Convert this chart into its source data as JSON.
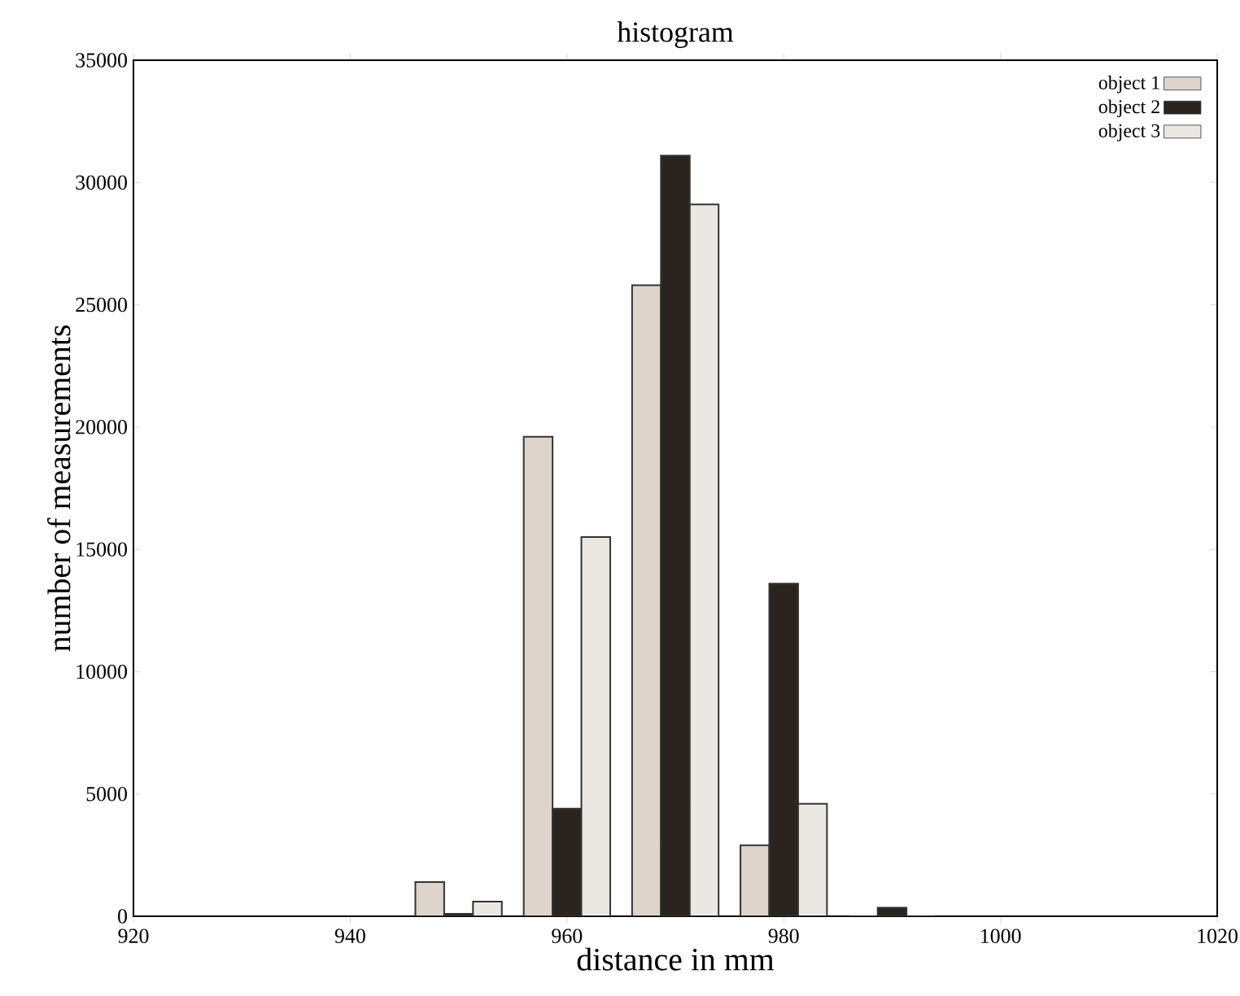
{
  "chart_data": {
    "type": "bar",
    "title": "histogram",
    "xlabel": "distance in mm",
    "ylabel": "number of measurements",
    "x": [
      950,
      960,
      970,
      980,
      990
    ],
    "series": [
      {
        "name": "object 1",
        "color": "#ddd5cc",
        "values": [
          1400,
          19600,
          25800,
          2900,
          0
        ]
      },
      {
        "name": "object 2",
        "color": "#2a2420",
        "values": [
          100,
          4400,
          31100,
          13600,
          350
        ]
      },
      {
        "name": "object 3",
        "color": "#ebe8e4",
        "values": [
          600,
          15500,
          29100,
          4600,
          0
        ]
      }
    ],
    "xlim": [
      920,
      1020
    ],
    "ylim": [
      0,
      35000
    ],
    "xticks": [
      920,
      940,
      960,
      980,
      1000,
      1020
    ],
    "yticks": [
      0,
      5000,
      10000,
      15000,
      20000,
      25000,
      30000,
      35000
    ],
    "grid": false,
    "legend": "top right"
  }
}
